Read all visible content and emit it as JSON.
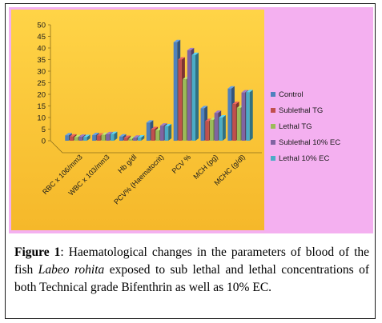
{
  "caption": {
    "label": "Figure 1",
    "text_before": ": Haematological changes in the parameters of blood of the fish ",
    "species": "Labeo rohita",
    "text_after": " exposed to sub lethal and lethal concentrations of both Technical grade Bifenthrin as well as 10% EC."
  },
  "chart_data": {
    "type": "bar",
    "title": "",
    "xlabel": "",
    "ylabel": "",
    "ylim": [
      0,
      50
    ],
    "yticks": [
      0,
      5,
      10,
      15,
      20,
      25,
      30,
      35,
      40,
      45,
      50
    ],
    "grid": false,
    "legend_position": "right",
    "categories": [
      "RBC x 106/mm3",
      "WBC x 103/mm3",
      "Hb g/dl",
      "PCV% (Haematocrit)",
      "PCV %",
      "MCH (pg)",
      "MCHC (g/dl)"
    ],
    "series": [
      {
        "name": "Control",
        "color": "#4f81bd",
        "values": [
          2.3,
          2.4,
          1.8,
          7.8,
          42.5,
          14.0,
          22.5
        ]
      },
      {
        "name": "Sublethal TG",
        "color": "#c0504d",
        "values": [
          1.8,
          2.2,
          1.2,
          5.0,
          35.0,
          8.5,
          15.8
        ]
      },
      {
        "name": "Lethal TG",
        "color": "#9bbb59",
        "values": [
          1.5,
          2.5,
          0.8,
          4.5,
          26.5,
          9.0,
          14.2
        ]
      },
      {
        "name": "Sublethal 10% EC",
        "color": "#8064a2",
        "values": [
          1.7,
          2.8,
          1.3,
          6.5,
          39.0,
          12.0,
          20.8
        ]
      },
      {
        "name": "Lethal 10% EC",
        "color": "#4bacc6",
        "values": [
          1.6,
          2.9,
          1.4,
          6.2,
          37.0,
          10.0,
          20.9
        ]
      }
    ]
  }
}
